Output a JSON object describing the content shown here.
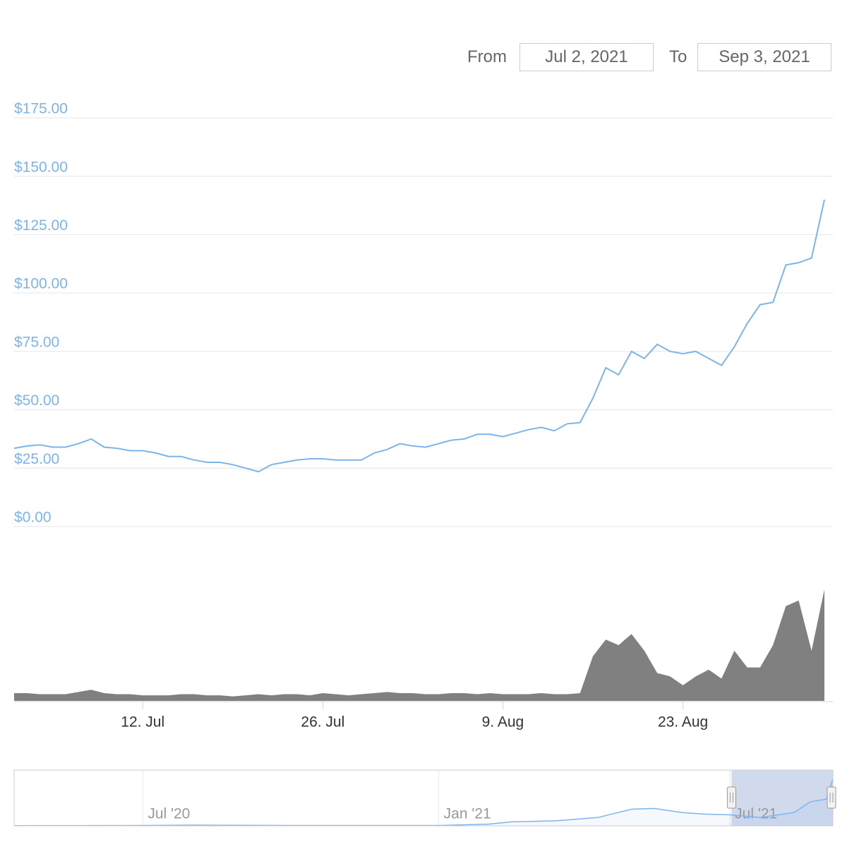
{
  "range_selector": {
    "from_label": "From",
    "from": "Jul 2, 2021",
    "to_label": "To",
    "to": "Sep 3, 2021"
  },
  "chart_data": [
    {
      "type": "line",
      "x": [
        "2021-07-02",
        "2021-07-03",
        "2021-07-04",
        "2021-07-05",
        "2021-07-06",
        "2021-07-07",
        "2021-07-08",
        "2021-07-09",
        "2021-07-10",
        "2021-07-11",
        "2021-07-12",
        "2021-07-13",
        "2021-07-14",
        "2021-07-15",
        "2021-07-16",
        "2021-07-17",
        "2021-07-18",
        "2021-07-19",
        "2021-07-20",
        "2021-07-21",
        "2021-07-22",
        "2021-07-23",
        "2021-07-24",
        "2021-07-25",
        "2021-07-26",
        "2021-07-27",
        "2021-07-28",
        "2021-07-29",
        "2021-07-30",
        "2021-07-31",
        "2021-08-01",
        "2021-08-02",
        "2021-08-03",
        "2021-08-04",
        "2021-08-05",
        "2021-08-06",
        "2021-08-07",
        "2021-08-08",
        "2021-08-09",
        "2021-08-10",
        "2021-08-11",
        "2021-08-12",
        "2021-08-13",
        "2021-08-14",
        "2021-08-15",
        "2021-08-16",
        "2021-08-17",
        "2021-08-18",
        "2021-08-19",
        "2021-08-20",
        "2021-08-21",
        "2021-08-22",
        "2021-08-23",
        "2021-08-24",
        "2021-08-25",
        "2021-08-26",
        "2021-08-27",
        "2021-08-28",
        "2021-08-29",
        "2021-08-30",
        "2021-08-31",
        "2021-09-01",
        "2021-09-02",
        "2021-09-03"
      ],
      "series": [
        {
          "name": "Price",
          "color": "#7cb5ec",
          "values": [
            33.5,
            34.5,
            35,
            34,
            34,
            35.5,
            37.5,
            34,
            33.5,
            32.5,
            32.5,
            31.5,
            30,
            30,
            28.5,
            27.5,
            27.5,
            26.5,
            25,
            23.5,
            26.5,
            27.5,
            28.5,
            29,
            29,
            28.5,
            28.5,
            28.5,
            31.5,
            33,
            35.5,
            34.5,
            34,
            35.5,
            37,
            37.5,
            39.5,
            39.5,
            38.5,
            40,
            41.5,
            42.5,
            41,
            44,
            44.5,
            55,
            68,
            65,
            75,
            72,
            78,
            75,
            74,
            75,
            72,
            69,
            77,
            87,
            95,
            96,
            112,
            113,
            115,
            140
          ]
        },
        {
          "name": "Volume",
          "color": "#808080",
          "axis": "y2",
          "values": [
            7,
            7,
            6,
            6,
            6,
            8,
            10,
            7,
            6,
            6,
            5,
            5,
            5,
            6,
            6,
            5,
            5,
            4,
            5,
            6,
            5,
            6,
            6,
            5,
            7,
            6,
            5,
            6,
            7,
            8,
            7,
            7,
            6,
            6,
            7,
            7,
            6,
            7,
            6,
            6,
            6,
            7,
            6,
            6,
            7,
            40,
            55,
            50,
            60,
            45,
            25,
            22,
            14,
            22,
            28,
            20,
            45,
            30,
            30,
            50,
            85,
            90,
            45,
            100
          ]
        }
      ],
      "xlim": [
        "2021-07-02",
        "2021-09-03"
      ],
      "xticks": [
        {
          "value": "2021-07-12",
          "label": "12. Jul"
        },
        {
          "value": "2021-07-26",
          "label": "26. Jul"
        },
        {
          "value": "2021-08-09",
          "label": "9. Aug"
        },
        {
          "value": "2021-08-23",
          "label": "23. Aug"
        }
      ],
      "ylim": [
        0,
        175
      ],
      "yticks": [
        {
          "value": 0,
          "label": "$0.00"
        },
        {
          "value": 25,
          "label": "$25.00"
        },
        {
          "value": 50,
          "label": "$50.00"
        },
        {
          "value": 75,
          "label": "$75.00"
        },
        {
          "value": 100,
          "label": "$100.00"
        },
        {
          "value": 125,
          "label": "$125.00"
        },
        {
          "value": 150,
          "label": "$150.00"
        },
        {
          "value": 175,
          "label": "$175.00"
        }
      ],
      "y2lim": [
        0,
        100
      ],
      "grid": true
    },
    {
      "type": "line",
      "x": [
        "2020-04-12",
        "2020-07-01",
        "2020-08-01",
        "2020-10-01",
        "2021-01-01",
        "2021-02-01",
        "2021-02-15",
        "2021-03-15",
        "2021-04-10",
        "2021-05-01",
        "2021-05-15",
        "2021-06-01",
        "2021-06-15",
        "2021-07-01",
        "2021-07-20",
        "2021-08-10",
        "2021-08-20",
        "2021-08-30",
        "2021-09-03"
      ],
      "series": [
        {
          "name": "Price",
          "color": "#7cb5ec",
          "values": [
            0.5,
            1,
            2,
            1,
            1,
            5,
            12,
            15,
            25,
            50,
            52,
            40,
            35,
            33,
            25,
            40,
            72,
            80,
            140
          ]
        }
      ],
      "xlim": [
        "2020-04-12",
        "2021-09-03"
      ],
      "xticks": [
        {
          "value": "2020-07-01",
          "label": "Jul '20"
        },
        {
          "value": "2021-01-01",
          "label": "Jan '21"
        },
        {
          "value": "2021-07-01",
          "label": "Jul '21"
        }
      ],
      "ylim": [
        0,
        150
      ],
      "selection": [
        "2021-07-02",
        "2021-09-03"
      ]
    }
  ]
}
